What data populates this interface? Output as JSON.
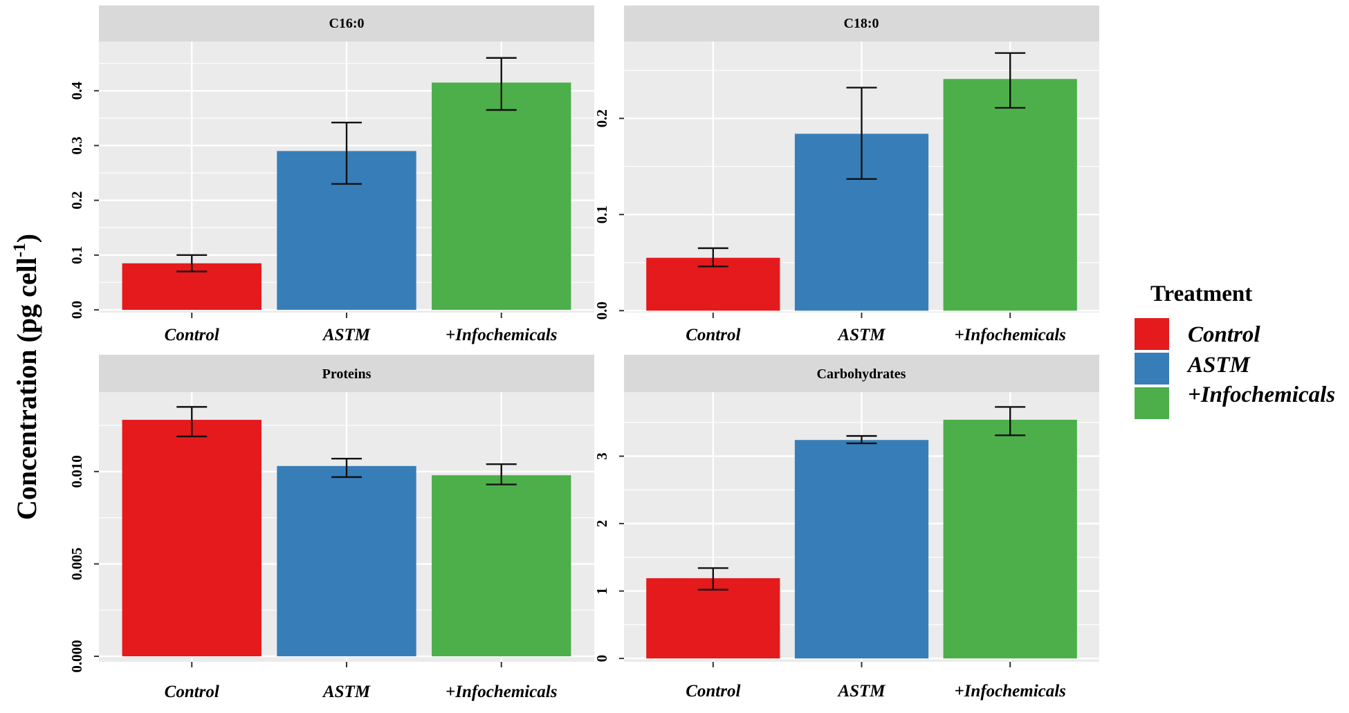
{
  "figure": {
    "y_label_main": "Concentration (pg cell",
    "y_label_sup": "-1",
    "y_label_close": ")"
  },
  "legend": {
    "title": "Treatment",
    "items": [
      {
        "label": "Control",
        "color": "#E41A1C"
      },
      {
        "label": "ASTM",
        "color": "#377EB8"
      },
      {
        "label": "+Infochemicals",
        "color": "#4DAF4A"
      }
    ]
  },
  "chart_data": [
    {
      "type": "bar",
      "title": "C16:0",
      "categories": [
        "Control",
        "ASTM",
        "+Infochemicals"
      ],
      "values": [
        0.085,
        0.29,
        0.415
      ],
      "error_low": [
        0.07,
        0.23,
        0.365
      ],
      "error_high": [
        0.1,
        0.342,
        0.46
      ],
      "ylim": [
        -0.005,
        0.49
      ],
      "yticks": [
        0.0,
        0.1,
        0.2,
        0.3,
        0.4
      ],
      "ytick_labels": [
        "0.0",
        "0.1",
        "0.2",
        "0.3",
        "0.4"
      ]
    },
    {
      "type": "bar",
      "title": "C18:0",
      "categories": [
        "Control",
        "ASTM",
        "+Infochemicals"
      ],
      "values": [
        0.055,
        0.184,
        0.241
      ],
      "error_low": [
        0.046,
        0.137,
        0.211
      ],
      "error_high": [
        0.065,
        0.232,
        0.268
      ],
      "ylim": [
        -0.002,
        0.28
      ],
      "yticks": [
        0.0,
        0.1,
        0.2
      ],
      "ytick_labels": [
        "0.0",
        "0.1",
        "0.2"
      ]
    },
    {
      "type": "bar",
      "title": "Proteins",
      "categories": [
        "Control",
        "ASTM",
        "+Infochemicals"
      ],
      "values": [
        0.0128,
        0.0103,
        0.0098
      ],
      "error_low": [
        0.0119,
        0.0097,
        0.0093
      ],
      "error_high": [
        0.0135,
        0.0107,
        0.0104
      ],
      "ylim": [
        -0.0003,
        0.0143
      ],
      "yticks": [
        0.0,
        0.005,
        0.01
      ],
      "ytick_labels": [
        "0.000",
        "0.005",
        "0.010"
      ]
    },
    {
      "type": "bar",
      "title": "Carbohydrates",
      "categories": [
        "Control",
        "ASTM",
        "+Infochemicals"
      ],
      "values": [
        1.19,
        3.24,
        3.54
      ],
      "error_low": [
        1.02,
        3.19,
        3.31
      ],
      "error_high": [
        1.34,
        3.3,
        3.73
      ],
      "ylim": [
        -0.05,
        3.95
      ],
      "yticks": [
        0,
        1,
        2,
        3
      ],
      "ytick_labels": [
        "0",
        "1",
        "2",
        "3"
      ]
    }
  ]
}
